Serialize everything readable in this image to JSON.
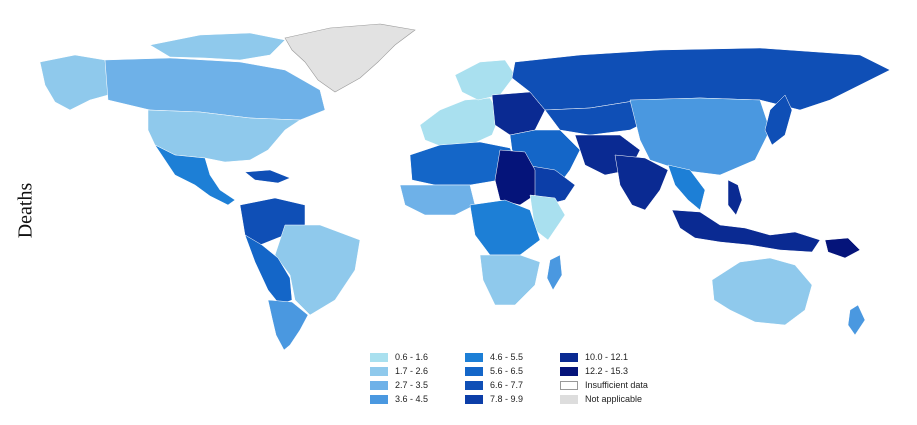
{
  "map": {
    "side_label": "Deaths",
    "legend": [
      {
        "label": "0.6 - 1.6",
        "color": "#a9e0ef"
      },
      {
        "label": "1.7 - 2.6",
        "color": "#8fc9ec"
      },
      {
        "label": "2.7 - 3.5",
        "color": "#6eb1e8"
      },
      {
        "label": "3.6 - 4.5",
        "color": "#4a98e0"
      },
      {
        "label": "4.6 - 5.5",
        "color": "#1d7fd6"
      },
      {
        "label": "5.6 - 6.5",
        "color": "#1466c8"
      },
      {
        "label": "6.6 - 7.7",
        "color": "#0f4fb6"
      },
      {
        "label": "7.8 - 9.9",
        "color": "#0c3ea8"
      },
      {
        "label": "10.0 - 12.1",
        "color": "#0a2a92"
      },
      {
        "label": "12.2 - 15.3",
        "color": "#05147a"
      },
      {
        "label": "Insufficient data",
        "color": "#ffffff"
      },
      {
        "label": "Not applicable",
        "color": "#dddddd"
      }
    ]
  }
}
